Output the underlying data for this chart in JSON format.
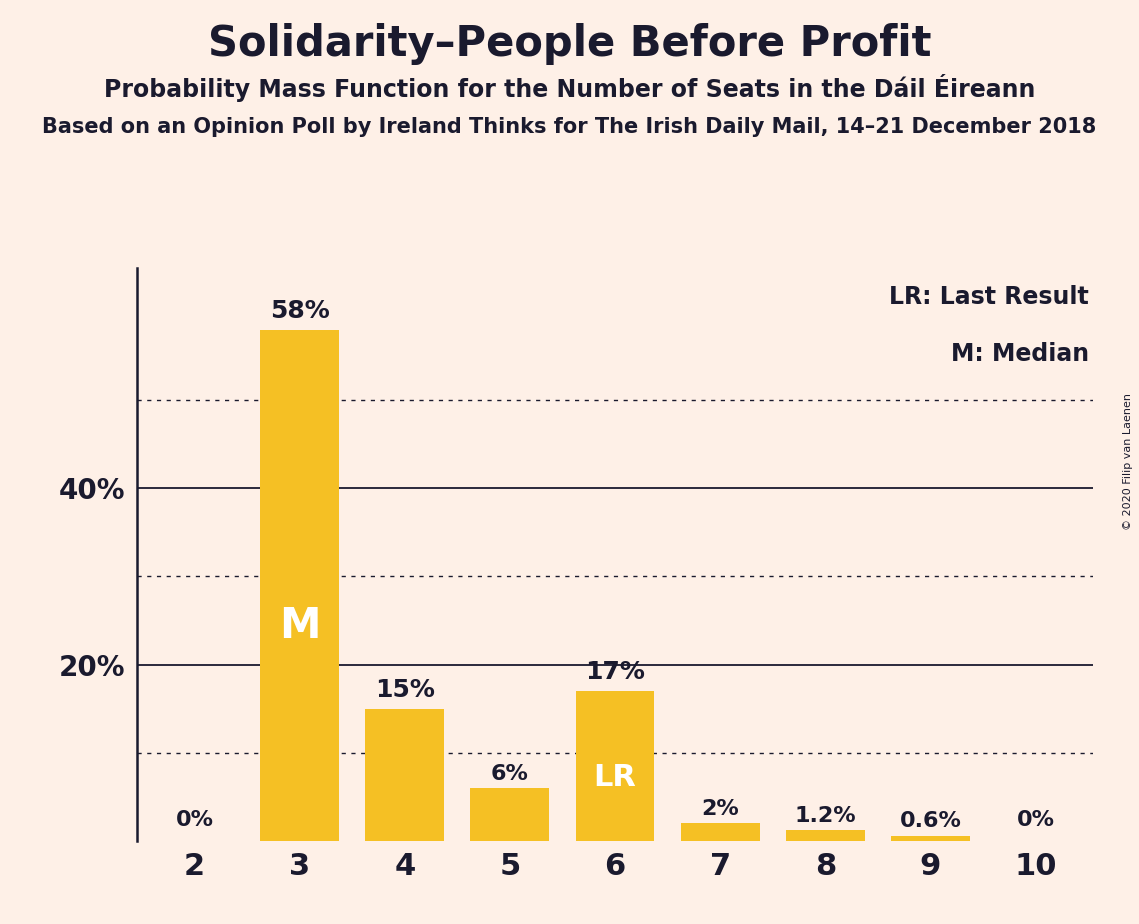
{
  "title": "Solidarity–People Before Profit",
  "subtitle1": "Probability Mass Function for the Number of Seats in the Dáil Éireann",
  "subtitle2": "Based on an Opinion Poll by Ireland Thinks for The Irish Daily Mail, 14–21 December 2018",
  "copyright": "© 2020 Filip van Laenen",
  "categories": [
    2,
    3,
    4,
    5,
    6,
    7,
    8,
    9,
    10
  ],
  "values": [
    0,
    58,
    15,
    6,
    17,
    2,
    1.2,
    0.6,
    0
  ],
  "bar_color": "#F5C024",
  "background_color": "#FEF0E7",
  "text_color": "#1A1A2E",
  "ytick_solid": [
    20,
    40
  ],
  "ytick_dotted": [
    10,
    30,
    50
  ],
  "ylim": [
    0,
    65
  ],
  "legend_lr": "LR: Last Result",
  "legend_m": "M: Median",
  "median_bar": 3,
  "lr_bar": 6,
  "label_map": {
    "2": "0%",
    "3": "58%",
    "4": "15%",
    "5": "6%",
    "6": "17%",
    "7": "2%",
    "8": "1.2%",
    "9": "0.6%",
    "10": "0%"
  }
}
